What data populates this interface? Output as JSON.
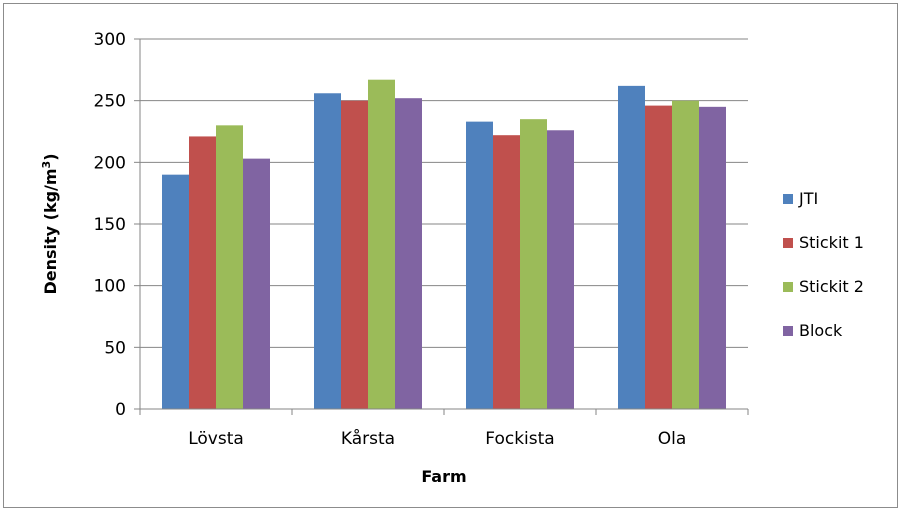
{
  "chart_data": {
    "type": "bar",
    "categories": [
      "Lövsta",
      "Kårsta",
      "Fockista",
      "Ola"
    ],
    "series": [
      {
        "name": "JTI",
        "color": "#4f81bd",
        "values": [
          190,
          256,
          233,
          262
        ]
      },
      {
        "name": "Stickit 1",
        "color": "#c0504d",
        "values": [
          221,
          250,
          222,
          246
        ]
      },
      {
        "name": "Stickit 2",
        "color": "#9bbb59",
        "values": [
          230,
          267,
          235,
          250
        ]
      },
      {
        "name": "Block",
        "color": "#8064a2",
        "values": [
          203,
          252,
          226,
          245
        ]
      }
    ],
    "xlabel": "Farm",
    "ylabel_main": "Density (kg/m",
    "ylabel_sup": "3",
    "ylabel_end": ")",
    "ylim": [
      0,
      300
    ],
    "yticks": [
      0,
      50,
      100,
      150,
      200,
      250,
      300
    ],
    "grid": true,
    "legend_position": "right"
  }
}
